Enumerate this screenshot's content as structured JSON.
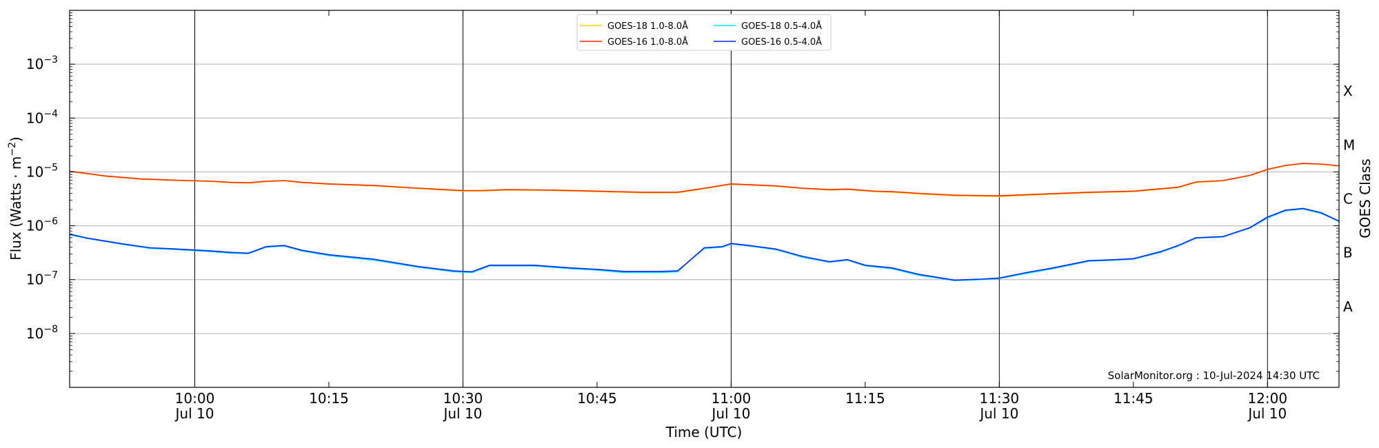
{
  "chart_data": {
    "type": "line",
    "xlabel": "Time (UTC)",
    "ylabel": "Flux (Watts · m",
    "ylabel_sup": "−2",
    "ylabel_close": ")",
    "right_label": "GOES Class",
    "watermark": "SolarMonitor.org : 10-Jul-2024 14:30 UTC",
    "y_scale": "log",
    "ylim": [
      1e-09,
      0.01
    ],
    "xlim": [
      "09:46",
      "12:08"
    ],
    "grid": "horizontal at decades",
    "legend_position": "top-center",
    "y_ticks": [
      {
        "exp": -8,
        "base": "10",
        "sup": "−8"
      },
      {
        "exp": -7,
        "base": "10",
        "sup": "−7"
      },
      {
        "exp": -6,
        "base": "10",
        "sup": "−6"
      },
      {
        "exp": -5,
        "base": "10",
        "sup": "−5"
      },
      {
        "exp": -4,
        "base": "10",
        "sup": "−4"
      },
      {
        "exp": -3,
        "base": "10",
        "sup": "−3"
      }
    ],
    "x_ticks": [
      {
        "time": "10:00",
        "label": "10:00",
        "sub": "Jul 10",
        "vline": true
      },
      {
        "time": "10:15",
        "label": "10:15",
        "sub": "",
        "vline": false
      },
      {
        "time": "10:30",
        "label": "10:30",
        "sub": "Jul 10",
        "vline": true
      },
      {
        "time": "10:45",
        "label": "10:45",
        "sub": "",
        "vline": false
      },
      {
        "time": "11:00",
        "label": "11:00",
        "sub": "Jul 10",
        "vline": true
      },
      {
        "time": "11:15",
        "label": "11:15",
        "sub": "",
        "vline": false
      },
      {
        "time": "11:30",
        "label": "11:30",
        "sub": "Jul 10",
        "vline": true
      },
      {
        "time": "11:45",
        "label": "11:45",
        "sub": "",
        "vline": false
      },
      {
        "time": "12:00",
        "label": "12:00",
        "sub": "Jul 10",
        "vline": true
      }
    ],
    "classes": [
      {
        "label": "A",
        "exp": -7.5
      },
      {
        "label": "B",
        "exp": -6.5
      },
      {
        "label": "C",
        "exp": -5.5
      },
      {
        "label": "M",
        "exp": -4.5
      },
      {
        "label": "X",
        "exp": -3.5
      }
    ],
    "series": [
      {
        "name": "GOES-18 1.0-8.0Å",
        "color": "#ffd700",
        "points": [
          [
            "09:46",
            1.02e-05
          ],
          [
            "09:50",
            8.3e-06
          ],
          [
            "09:54",
            7.3e-06
          ],
          [
            "09:58",
            6.9e-06
          ],
          [
            "10:02",
            6.6e-06
          ],
          [
            "10:04",
            6.3e-06
          ],
          [
            "10:06",
            6.2e-06
          ],
          [
            "10:08",
            6.6e-06
          ],
          [
            "10:10",
            6.8e-06
          ],
          [
            "10:12",
            6.3e-06
          ],
          [
            "10:15",
            5.9e-06
          ],
          [
            "10:20",
            5.5e-06
          ],
          [
            "10:25",
            4.9e-06
          ],
          [
            "10:30",
            4.4e-06
          ],
          [
            "10:32",
            4.4e-06
          ],
          [
            "10:35",
            4.6e-06
          ],
          [
            "10:40",
            4.5e-06
          ],
          [
            "10:45",
            4.3e-06
          ],
          [
            "10:50",
            4.1e-06
          ],
          [
            "10:54",
            4.1e-06
          ],
          [
            "10:56",
            4.6e-06
          ],
          [
            "10:58",
            5.2e-06
          ],
          [
            "11:00",
            5.9e-06
          ],
          [
            "11:02",
            5.7e-06
          ],
          [
            "11:05",
            5.4e-06
          ],
          [
            "11:08",
            4.9e-06
          ],
          [
            "11:11",
            4.6e-06
          ],
          [
            "11:13",
            4.7e-06
          ],
          [
            "11:16",
            4.3e-06
          ],
          [
            "11:18",
            4.2e-06
          ],
          [
            "11:21",
            3.9e-06
          ],
          [
            "11:25",
            3.6e-06
          ],
          [
            "11:30",
            3.5e-06
          ],
          [
            "11:35",
            3.8e-06
          ],
          [
            "11:40",
            4.1e-06
          ],
          [
            "11:45",
            4.3e-06
          ],
          [
            "11:50",
            5.1e-06
          ],
          [
            "11:52",
            6.4e-06
          ],
          [
            "11:55",
            6.8e-06
          ],
          [
            "11:58",
            8.5e-06
          ],
          [
            "12:00",
            1.1e-05
          ],
          [
            "12:02",
            1.3e-05
          ],
          [
            "12:04",
            1.42e-05
          ],
          [
            "12:06",
            1.38e-05
          ],
          [
            "12:08",
            1.28e-05
          ]
        ]
      },
      {
        "name": "GOES-18 0.5-4.0Å",
        "color": "#00e5ff",
        "points": [
          [
            "09:46",
            6.8e-07
          ],
          [
            "09:48",
            5.8e-07
          ],
          [
            "09:52",
            4.5e-07
          ],
          [
            "09:55",
            3.8e-07
          ],
          [
            "09:58",
            3.6e-07
          ],
          [
            "10:02",
            3.3e-07
          ],
          [
            "10:04",
            3.1e-07
          ],
          [
            "10:06",
            3.05e-07
          ],
          [
            "10:08",
            4e-07
          ],
          [
            "10:10",
            4.2e-07
          ],
          [
            "10:12",
            3.4e-07
          ],
          [
            "10:15",
            2.8e-07
          ],
          [
            "10:20",
            2.3e-07
          ],
          [
            "10:25",
            1.7e-07
          ],
          [
            "10:29",
            1.4e-07
          ],
          [
            "10:31",
            1.35e-07
          ],
          [
            "10:33",
            1.8e-07
          ],
          [
            "10:38",
            1.8e-07
          ],
          [
            "10:42",
            1.6e-07
          ],
          [
            "10:45",
            1.5e-07
          ],
          [
            "10:48",
            1.35e-07
          ],
          [
            "10:52",
            1.35e-07
          ],
          [
            "10:54",
            1.4e-07
          ],
          [
            "10:55",
            2e-07
          ],
          [
            "10:57",
            3.8e-07
          ],
          [
            "10:59",
            4e-07
          ],
          [
            "11:00",
            4.6e-07
          ],
          [
            "11:02",
            4.2e-07
          ],
          [
            "11:05",
            3.6e-07
          ],
          [
            "11:08",
            2.6e-07
          ],
          [
            "11:11",
            2.1e-07
          ],
          [
            "11:13",
            2.3e-07
          ],
          [
            "11:15",
            1.8e-07
          ],
          [
            "11:18",
            1.6e-07
          ],
          [
            "11:21",
            1.2e-07
          ],
          [
            "11:25",
            9.6e-08
          ],
          [
            "11:28",
            1e-07
          ],
          [
            "11:30",
            1.05e-07
          ],
          [
            "11:33",
            1.3e-07
          ],
          [
            "11:36",
            1.6e-07
          ],
          [
            "11:40",
            2.2e-07
          ],
          [
            "11:43",
            2.3e-07
          ],
          [
            "11:45",
            2.4e-07
          ],
          [
            "11:48",
            3.2e-07
          ],
          [
            "11:50",
            4.2e-07
          ],
          [
            "11:52",
            5.9e-07
          ],
          [
            "11:55",
            6.2e-07
          ],
          [
            "11:58",
            9e-07
          ],
          [
            "12:00",
            1.4e-06
          ],
          [
            "12:02",
            1.9e-06
          ],
          [
            "12:04",
            2.05e-06
          ],
          [
            "12:06",
            1.7e-06
          ],
          [
            "12:08",
            1.2e-06
          ]
        ]
      },
      {
        "name": "GOES-16 1.0-8.0Å",
        "color": "#ff2a00",
        "points": [
          [
            "09:46",
            1.03e-05
          ],
          [
            "09:50",
            8.4e-06
          ],
          [
            "09:54",
            7.4e-06
          ],
          [
            "09:58",
            7e-06
          ],
          [
            "10:02",
            6.7e-06
          ],
          [
            "10:04",
            6.4e-06
          ],
          [
            "10:06",
            6.3e-06
          ],
          [
            "10:08",
            6.7e-06
          ],
          [
            "10:10",
            6.9e-06
          ],
          [
            "10:12",
            6.4e-06
          ],
          [
            "10:15",
            6e-06
          ],
          [
            "10:20",
            5.6e-06
          ],
          [
            "10:25",
            5e-06
          ],
          [
            "10:30",
            4.5e-06
          ],
          [
            "10:32",
            4.5e-06
          ],
          [
            "10:35",
            4.7e-06
          ],
          [
            "10:40",
            4.6e-06
          ],
          [
            "10:45",
            4.4e-06
          ],
          [
            "10:50",
            4.2e-06
          ],
          [
            "10:54",
            4.2e-06
          ],
          [
            "10:56",
            4.7e-06
          ],
          [
            "10:58",
            5.3e-06
          ],
          [
            "11:00",
            6e-06
          ],
          [
            "11:02",
            5.8e-06
          ],
          [
            "11:05",
            5.5e-06
          ],
          [
            "11:08",
            5e-06
          ],
          [
            "11:11",
            4.7e-06
          ],
          [
            "11:13",
            4.8e-06
          ],
          [
            "11:16",
            4.4e-06
          ],
          [
            "11:18",
            4.3e-06
          ],
          [
            "11:21",
            4e-06
          ],
          [
            "11:25",
            3.7e-06
          ],
          [
            "11:30",
            3.6e-06
          ],
          [
            "11:35",
            3.9e-06
          ],
          [
            "11:40",
            4.2e-06
          ],
          [
            "11:45",
            4.4e-06
          ],
          [
            "11:50",
            5.2e-06
          ],
          [
            "11:52",
            6.5e-06
          ],
          [
            "11:55",
            6.9e-06
          ],
          [
            "11:58",
            8.6e-06
          ],
          [
            "12:00",
            1.12e-05
          ],
          [
            "12:02",
            1.32e-05
          ],
          [
            "12:04",
            1.44e-05
          ],
          [
            "12:06",
            1.4e-05
          ],
          [
            "12:08",
            1.3e-05
          ]
        ]
      },
      {
        "name": "GOES-16 0.5-4.0Å",
        "color": "#0026ff",
        "points": [
          [
            "09:46",
            7e-07
          ],
          [
            "09:48",
            5.9e-07
          ],
          [
            "09:52",
            4.6e-07
          ],
          [
            "09:55",
            3.9e-07
          ],
          [
            "09:58",
            3.7e-07
          ],
          [
            "10:02",
            3.4e-07
          ],
          [
            "10:04",
            3.2e-07
          ],
          [
            "10:06",
            3.1e-07
          ],
          [
            "10:08",
            4.1e-07
          ],
          [
            "10:10",
            4.3e-07
          ],
          [
            "10:12",
            3.5e-07
          ],
          [
            "10:15",
            2.9e-07
          ],
          [
            "10:20",
            2.4e-07
          ],
          [
            "10:25",
            1.75e-07
          ],
          [
            "10:29",
            1.45e-07
          ],
          [
            "10:31",
            1.4e-07
          ],
          [
            "10:33",
            1.85e-07
          ],
          [
            "10:38",
            1.85e-07
          ],
          [
            "10:42",
            1.65e-07
          ],
          [
            "10:45",
            1.55e-07
          ],
          [
            "10:48",
            1.42e-07
          ],
          [
            "10:52",
            1.42e-07
          ],
          [
            "10:54",
            1.45e-07
          ],
          [
            "10:55",
            2e-07
          ],
          [
            "10:57",
            3.9e-07
          ],
          [
            "10:59",
            4.1e-07
          ],
          [
            "11:00",
            4.7e-07
          ],
          [
            "11:02",
            4.3e-07
          ],
          [
            "11:05",
            3.7e-07
          ],
          [
            "11:08",
            2.7e-07
          ],
          [
            "11:11",
            2.15e-07
          ],
          [
            "11:13",
            2.35e-07
          ],
          [
            "11:15",
            1.85e-07
          ],
          [
            "11:18",
            1.65e-07
          ],
          [
            "11:21",
            1.25e-07
          ],
          [
            "11:25",
            9.8e-08
          ],
          [
            "11:28",
            1.02e-07
          ],
          [
            "11:30",
            1.07e-07
          ],
          [
            "11:33",
            1.35e-07
          ],
          [
            "11:36",
            1.65e-07
          ],
          [
            "11:40",
            2.25e-07
          ],
          [
            "11:43",
            2.35e-07
          ],
          [
            "11:45",
            2.45e-07
          ],
          [
            "11:48",
            3.3e-07
          ],
          [
            "11:50",
            4.3e-07
          ],
          [
            "11:52",
            6e-07
          ],
          [
            "11:55",
            6.3e-07
          ],
          [
            "11:58",
            9.2e-07
          ],
          [
            "12:00",
            1.45e-06
          ],
          [
            "12:02",
            1.95e-06
          ],
          [
            "12:04",
            2.1e-06
          ],
          [
            "12:06",
            1.75e-06
          ],
          [
            "12:08",
            1.22e-06
          ]
        ]
      }
    ]
  }
}
